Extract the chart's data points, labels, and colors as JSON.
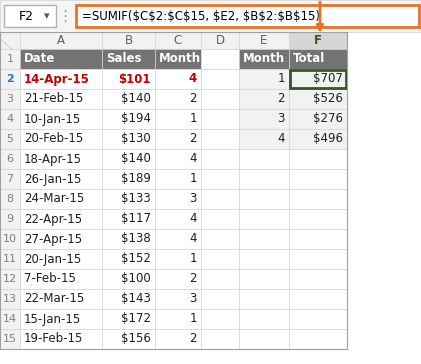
{
  "formula_bar_cell": "F2",
  "formula_bar_text": "=SUMIF($C$2:$C$15, $E2, $B$2:$B$15)",
  "col_letters": [
    "A",
    "B",
    "C",
    "D",
    "E",
    "F"
  ],
  "header_row": [
    "Date",
    "Sales",
    "Month",
    "",
    "Month",
    "Total"
  ],
  "data_rows": [
    [
      "14-Apr-15",
      "$101",
      "4",
      "",
      "1",
      "$707"
    ],
    [
      "21-Feb-15",
      "$140",
      "2",
      "",
      "2",
      "$526"
    ],
    [
      "10-Jan-15",
      "$194",
      "1",
      "",
      "3",
      "$276"
    ],
    [
      "20-Feb-15",
      "$130",
      "2",
      "",
      "4",
      "$496"
    ],
    [
      "18-Apr-15",
      "$140",
      "4",
      "",
      "",
      ""
    ],
    [
      "26-Jan-15",
      "$189",
      "1",
      "",
      "",
      ""
    ],
    [
      "24-Mar-15",
      "$133",
      "3",
      "",
      "",
      ""
    ],
    [
      "22-Apr-15",
      "$117",
      "4",
      "",
      "",
      ""
    ],
    [
      "27-Apr-15",
      "$138",
      "4",
      "",
      "",
      ""
    ],
    [
      "20-Jan-15",
      "$152",
      "1",
      "",
      "",
      ""
    ],
    [
      "7-Feb-15",
      "$100",
      "2",
      "",
      "",
      ""
    ],
    [
      "22-Mar-15",
      "$143",
      "3",
      "",
      "",
      ""
    ],
    [
      "15-Jan-15",
      "$172",
      "1",
      "",
      "",
      ""
    ],
    [
      "19-Feb-15",
      "$156",
      "2",
      "",
      "",
      ""
    ]
  ],
  "header_bg": "#737373",
  "header_fg": "#ffffff",
  "row_num_bg": "#f2f2f2",
  "row_num_fg": "#808080",
  "active_row_num_fg": "#2e75b6",
  "col_F_header_bg": "#d6d6d6",
  "col_F_header_fg": "#375623",
  "cell_bg_white": "#ffffff",
  "cell_bg_highlight": "#f2f2f2",
  "grid_color": "#d4d4d4",
  "formula_border_color": "#e8722a",
  "active_cell_border": "#375623",
  "arrow_color": "#e8722a",
  "active_row_text_color": "#c00000"
}
